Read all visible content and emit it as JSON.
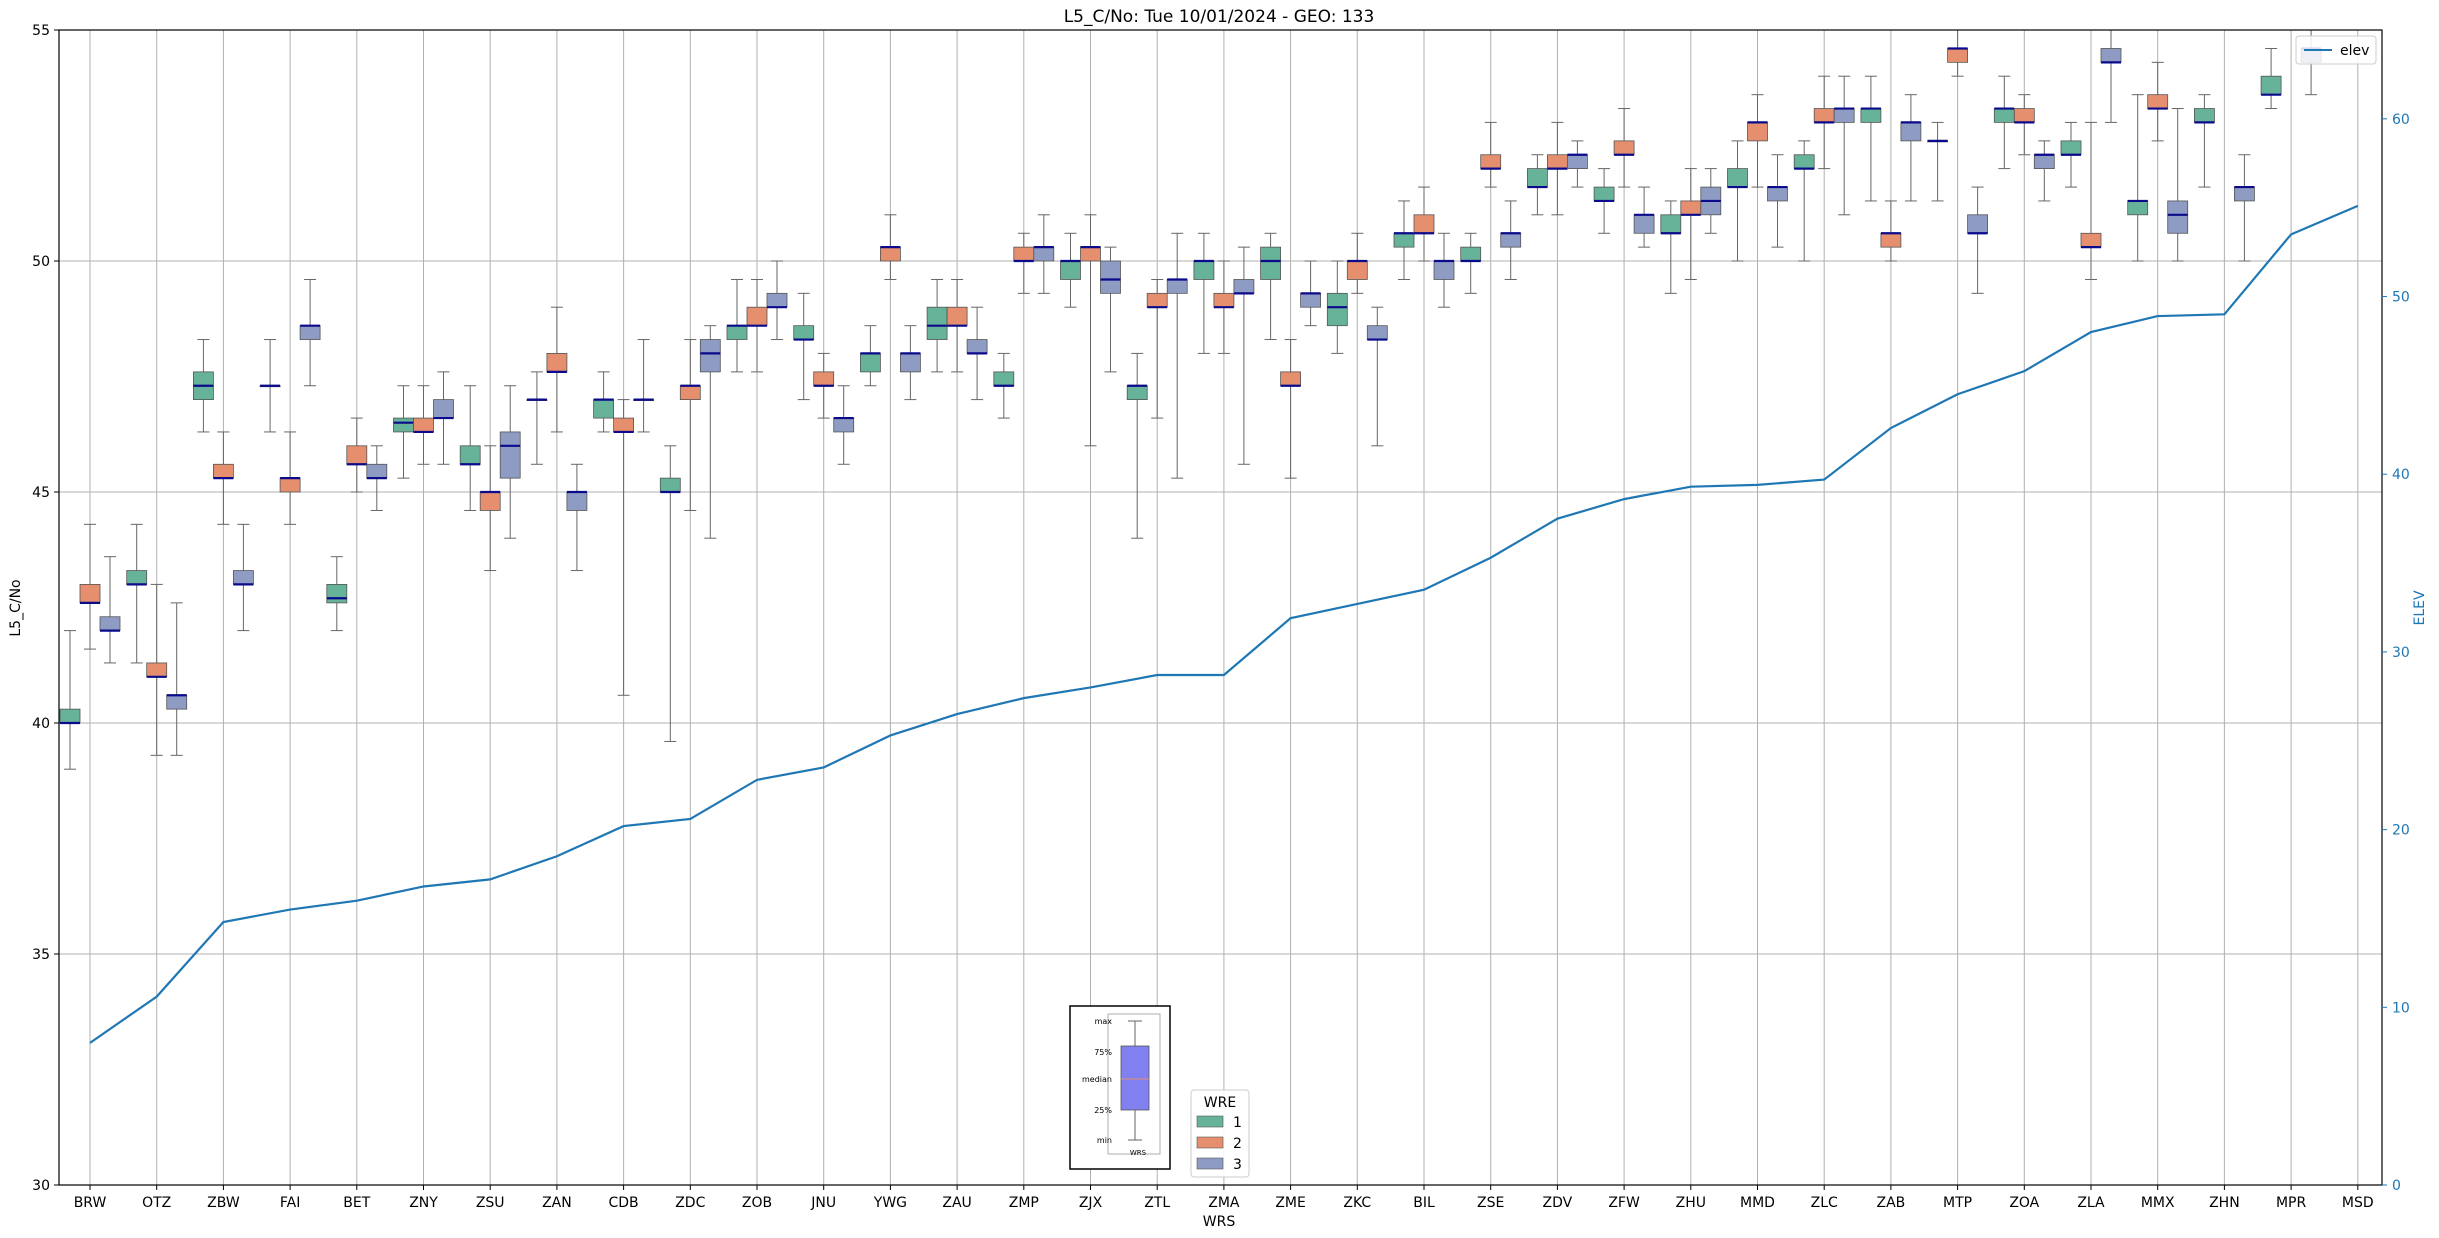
{
  "chart_data": {
    "type": "box",
    "title": "L5_C/No: Tue 10/01/2024 - GEO: 133",
    "xlabel": "WRS",
    "ylabel": "L5_C/No",
    "y2label": "ELEV",
    "ylim": [
      30,
      55
    ],
    "y2lim": [
      0,
      65
    ],
    "yticks": [
      30,
      35,
      40,
      45,
      50,
      55
    ],
    "y2ticks": [
      0,
      10,
      20,
      30,
      40,
      50,
      60
    ],
    "grid": true,
    "colors": {
      "1": "#66b39a",
      "2": "#e68f6e",
      "3": "#8e9cc4",
      "elev": "#1f77b4",
      "median": "#0a0a8a"
    },
    "categories": [
      "BRW",
      "OTZ",
      "ZBW",
      "FAI",
      "BET",
      "ZNY",
      "ZSU",
      "ZAN",
      "CDB",
      "ZDC",
      "ZOB",
      "JNU",
      "YWG",
      "ZAU",
      "ZMP",
      "ZJX",
      "ZTL",
      "ZMA",
      "ZME",
      "ZKC",
      "BIL",
      "ZSE",
      "ZDV",
      "ZFW",
      "ZHU",
      "MMD",
      "ZLC",
      "ZAB",
      "MTP",
      "ZOA",
      "ZLA",
      "MMX",
      "ZHN",
      "MPR",
      "MSD"
    ],
    "elev": [
      8.0,
      10.6,
      14.8,
      15.5,
      16.0,
      16.8,
      17.2,
      18.5,
      20.2,
      20.6,
      22.8,
      23.5,
      25.3,
      26.5,
      27.4,
      28.0,
      28.7,
      28.7,
      31.9,
      32.7,
      33.5,
      35.3,
      37.5,
      38.6,
      39.3,
      39.4,
      39.7,
      42.6,
      44.5,
      45.8,
      48.0,
      48.9,
      49.0,
      53.5,
      55.1
    ],
    "series": [
      {
        "name": "1",
        "boxes": [
          [
            0,
            39.0,
            40.0,
            40.0,
            40.3,
            42.0
          ],
          [
            1,
            41.3,
            43.0,
            43.0,
            43.3,
            44.3
          ],
          [
            2,
            46.3,
            47.0,
            47.3,
            47.6,
            48.3
          ],
          [
            3,
            46.3,
            47.3,
            47.3,
            47.3,
            48.3
          ],
          [
            4,
            42.0,
            42.6,
            42.7,
            43.0,
            43.6
          ],
          [
            5,
            45.3,
            46.3,
            46.5,
            46.6,
            47.3
          ],
          [
            6,
            44.6,
            45.6,
            45.6,
            46.0,
            47.3
          ],
          [
            7,
            45.6,
            47.0,
            47.0,
            47.0,
            47.6
          ],
          [
            8,
            46.3,
            46.6,
            47.0,
            47.0,
            47.6
          ],
          [
            9,
            39.6,
            45.0,
            45.0,
            45.3,
            46.0
          ],
          [
            10,
            47.6,
            48.3,
            48.6,
            48.6,
            49.6
          ],
          [
            11,
            47.0,
            48.3,
            48.3,
            48.6,
            49.3
          ],
          [
            12,
            47.3,
            47.6,
            48.0,
            48.0,
            48.6
          ],
          [
            13,
            47.6,
            48.3,
            48.6,
            49.0,
            49.6
          ],
          [
            14,
            46.6,
            47.3,
            47.3,
            47.6,
            48.0
          ],
          [
            15,
            49.0,
            49.6,
            50.0,
            50.0,
            50.6
          ],
          [
            16,
            44.0,
            47.0,
            47.3,
            47.3,
            48.0
          ],
          [
            17,
            48.0,
            49.6,
            50.0,
            50.0,
            50.6
          ],
          [
            18,
            48.3,
            49.6,
            50.0,
            50.3,
            50.6
          ],
          [
            19,
            48.0,
            48.6,
            49.0,
            49.3,
            50.0
          ],
          [
            20,
            49.6,
            50.3,
            50.6,
            50.6,
            51.3
          ],
          [
            21,
            49.3,
            50.0,
            50.0,
            50.3,
            50.6
          ],
          [
            22,
            51.0,
            51.6,
            51.6,
            52.0,
            52.3
          ],
          [
            23,
            50.6,
            51.3,
            51.3,
            51.6,
            52.0
          ],
          [
            24,
            49.3,
            50.6,
            50.6,
            51.0,
            51.3
          ],
          [
            25,
            50.0,
            51.6,
            51.6,
            52.0,
            52.6
          ],
          [
            26,
            50.0,
            52.0,
            52.0,
            52.3,
            52.6
          ],
          [
            27,
            51.3,
            53.0,
            53.3,
            53.3,
            54.0
          ],
          [
            28,
            51.3,
            52.6,
            52.6,
            52.6,
            53.0
          ],
          [
            29,
            52.0,
            53.0,
            53.3,
            53.3,
            54.0
          ],
          [
            30,
            51.6,
            52.3,
            52.3,
            52.6,
            53.0
          ],
          [
            31,
            50.0,
            51.0,
            51.3,
            51.3,
            53.6
          ],
          [
            32,
            51.6,
            53.0,
            53.0,
            53.3,
            53.6
          ],
          [
            33,
            53.3,
            53.6,
            53.6,
            54.0,
            54.6
          ]
        ]
      },
      {
        "name": "2",
        "boxes": [
          [
            0,
            41.6,
            42.6,
            42.6,
            43.0,
            44.3
          ],
          [
            1,
            39.3,
            41.0,
            41.0,
            41.3,
            43.0
          ],
          [
            2,
            44.3,
            45.3,
            45.3,
            45.6,
            46.3
          ],
          [
            3,
            44.3,
            45.0,
            45.3,
            45.3,
            46.3
          ],
          [
            4,
            45.0,
            45.6,
            45.6,
            46.0,
            46.6
          ],
          [
            5,
            45.6,
            46.3,
            46.3,
            46.6,
            47.3
          ],
          [
            6,
            43.3,
            44.6,
            45.0,
            45.0,
            46.0
          ],
          [
            7,
            46.3,
            47.6,
            47.6,
            48.0,
            49.0
          ],
          [
            8,
            40.6,
            46.3,
            46.3,
            46.6,
            47.0
          ],
          [
            9,
            44.6,
            47.0,
            47.3,
            47.3,
            48.3
          ],
          [
            10,
            47.6,
            48.6,
            48.6,
            49.0,
            49.6
          ],
          [
            11,
            46.6,
            47.3,
            47.3,
            47.6,
            48.0
          ],
          [
            12,
            49.6,
            50.0,
            50.3,
            50.3,
            51.0
          ],
          [
            13,
            47.6,
            48.6,
            48.6,
            49.0,
            49.6
          ],
          [
            14,
            49.3,
            50.0,
            50.0,
            50.3,
            50.6
          ],
          [
            15,
            46.0,
            50.0,
            50.3,
            50.3,
            51.0
          ],
          [
            16,
            46.6,
            49.0,
            49.0,
            49.3,
            49.6
          ],
          [
            17,
            48.0,
            49.0,
            49.0,
            49.3,
            50.0
          ],
          [
            18,
            45.3,
            47.3,
            47.3,
            47.6,
            48.3
          ],
          [
            19,
            49.3,
            49.6,
            50.0,
            50.0,
            50.6
          ],
          [
            20,
            50.0,
            50.6,
            50.6,
            51.0,
            51.6
          ],
          [
            21,
            51.6,
            52.0,
            52.0,
            52.3,
            53.0
          ],
          [
            22,
            51.0,
            52.0,
            52.0,
            52.3,
            53.0
          ],
          [
            23,
            51.6,
            52.3,
            52.3,
            52.6,
            53.3
          ],
          [
            24,
            49.6,
            51.0,
            51.0,
            51.3,
            52.0
          ],
          [
            25,
            51.6,
            52.6,
            53.0,
            53.0,
            53.6
          ],
          [
            26,
            52.0,
            53.0,
            53.0,
            53.3,
            54.0
          ],
          [
            27,
            50.0,
            50.3,
            50.6,
            50.6,
            51.3
          ],
          [
            28,
            54.0,
            54.3,
            54.6,
            54.6,
            55.0
          ],
          [
            29,
            52.3,
            53.0,
            53.0,
            53.3,
            53.6
          ],
          [
            30,
            49.6,
            50.3,
            50.3,
            50.6,
            53.0
          ],
          [
            31,
            52.6,
            53.3,
            53.3,
            53.6,
            54.3
          ]
        ]
      },
      {
        "name": "3",
        "boxes": [
          [
            0,
            41.3,
            42.0,
            42.0,
            42.3,
            43.6
          ],
          [
            1,
            39.3,
            40.3,
            40.6,
            40.6,
            42.6
          ],
          [
            2,
            42.0,
            43.0,
            43.0,
            43.3,
            44.3
          ],
          [
            3,
            47.3,
            48.3,
            48.6,
            48.6,
            49.6
          ],
          [
            4,
            44.6,
            45.3,
            45.3,
            45.6,
            46.0
          ],
          [
            5,
            45.6,
            46.6,
            46.6,
            47.0,
            47.6
          ],
          [
            6,
            44.0,
            45.3,
            46.0,
            46.3,
            47.3
          ],
          [
            7,
            43.3,
            44.6,
            45.0,
            45.0,
            45.6
          ],
          [
            8,
            46.3,
            47.0,
            47.0,
            47.0,
            48.3
          ],
          [
            9,
            44.0,
            47.6,
            48.0,
            48.3,
            48.6
          ],
          [
            10,
            48.3,
            49.0,
            49.0,
            49.3,
            50.0
          ],
          [
            11,
            45.6,
            46.3,
            46.6,
            46.6,
            47.3
          ],
          [
            12,
            47.0,
            47.6,
            48.0,
            48.0,
            48.6
          ],
          [
            13,
            47.0,
            48.0,
            48.0,
            48.3,
            49.0
          ],
          [
            14,
            49.3,
            50.0,
            50.3,
            50.3,
            51.0
          ],
          [
            15,
            47.6,
            49.3,
            49.6,
            50.0,
            50.3
          ],
          [
            16,
            45.3,
            49.3,
            49.6,
            49.6,
            50.6
          ],
          [
            17,
            45.6,
            49.3,
            49.3,
            49.6,
            50.3
          ],
          [
            18,
            48.6,
            49.0,
            49.3,
            49.3,
            50.0
          ],
          [
            19,
            46.0,
            48.3,
            48.3,
            48.6,
            49.0
          ],
          [
            20,
            49.0,
            49.6,
            50.0,
            50.0,
            50.6
          ],
          [
            21,
            49.6,
            50.3,
            50.6,
            50.6,
            51.3
          ],
          [
            22,
            51.6,
            52.0,
            52.3,
            52.3,
            52.6
          ],
          [
            23,
            50.3,
            50.6,
            51.0,
            51.0,
            51.6
          ],
          [
            24,
            50.6,
            51.0,
            51.3,
            51.6,
            52.0
          ],
          [
            25,
            50.3,
            51.3,
            51.6,
            51.6,
            52.3
          ],
          [
            26,
            51.0,
            53.0,
            53.3,
            53.3,
            54.0
          ],
          [
            27,
            51.3,
            52.6,
            53.0,
            53.0,
            53.6
          ],
          [
            28,
            49.3,
            50.6,
            50.6,
            51.0,
            51.6
          ],
          [
            29,
            51.3,
            52.0,
            52.3,
            52.3,
            52.6
          ],
          [
            30,
            53.0,
            54.3,
            54.3,
            54.6,
            55.0
          ],
          [
            31,
            50.0,
            50.6,
            51.0,
            51.3,
            53.3
          ],
          [
            32,
            50.0,
            51.3,
            51.6,
            51.6,
            52.3
          ],
          [
            33,
            53.6,
            54.3,
            54.6,
            54.6,
            55.0
          ]
        ]
      }
    ],
    "legend_elev": "elev",
    "legend_wre": {
      "title": "WRE",
      "entries": [
        "1",
        "2",
        "3"
      ]
    },
    "box_key": {
      "labels": [
        "max",
        "75%",
        "median",
        "25%",
        "min"
      ],
      "xlabel": "WRS"
    }
  }
}
